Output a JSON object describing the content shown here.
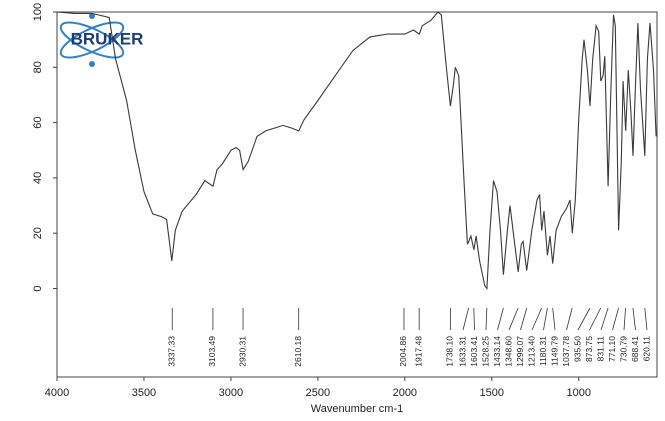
{
  "chart_data": {
    "type": "line",
    "x_label": "Wavenumber cm-1",
    "logo_text": "BRUKER",
    "color": "#3a3a3a",
    "xlim": [
      4000,
      550
    ],
    "ylim": [
      -32,
      100
    ],
    "xticks": [
      4000,
      3500,
      3000,
      2500,
      2000,
      1500,
      1000
    ],
    "yticks": [
      0,
      20,
      40,
      60,
      80,
      100
    ],
    "x": [
      4000,
      3900,
      3800,
      3700,
      3663,
      3600,
      3550,
      3500,
      3450,
      3400,
      3370,
      3340,
      3320,
      3280,
      3200,
      3150,
      3103,
      3080,
      3050,
      3000,
      2970,
      2950,
      2930,
      2900,
      2850,
      2800,
      2750,
      2700,
      2650,
      2610,
      2580,
      2500,
      2400,
      2300,
      2200,
      2100,
      2000,
      1950,
      1917,
      1900,
      1850,
      1810,
      1790,
      1760,
      1738,
      1720,
      1710,
      1690,
      1660,
      1640,
      1633,
      1620,
      1603,
      1590,
      1570,
      1540,
      1528,
      1510,
      1490,
      1470,
      1450,
      1433,
      1410,
      1395,
      1370,
      1348,
      1330,
      1320,
      1299,
      1270,
      1240,
      1225,
      1213,
      1200,
      1180,
      1165,
      1150,
      1130,
      1100,
      1070,
      1050,
      1037,
      1020,
      1000,
      980,
      970,
      950,
      935,
      920,
      900,
      885,
      873,
      860,
      850,
      831,
      815,
      800,
      790,
      771,
      755,
      745,
      730,
      715,
      700,
      688,
      675,
      660,
      645,
      620,
      605,
      590,
      570,
      555
    ],
    "values": [
      100,
      99.5,
      99.5,
      98,
      83,
      68,
      50,
      35,
      27,
      26,
      25,
      10,
      21,
      28,
      34,
      39,
      37,
      43,
      45,
      50,
      51,
      50,
      43,
      46,
      55,
      57,
      58,
      59,
      58,
      57,
      61,
      68,
      77,
      86,
      91,
      92,
      92,
      93.5,
      92,
      95,
      97,
      100,
      99,
      79,
      66,
      74,
      80,
      77,
      39,
      16,
      17,
      19,
      14,
      19,
      10,
      1,
      0,
      21,
      39,
      35,
      21,
      5,
      21,
      30,
      17,
      6,
      16,
      17,
      6.5,
      21,
      32,
      34,
      21,
      28,
      12,
      19,
      9,
      21,
      26,
      29,
      32,
      20,
      32,
      61,
      83,
      90,
      79,
      66,
      83,
      95,
      93,
      75,
      77,
      84,
      37,
      72,
      99,
      95,
      21,
      46,
      75,
      57,
      79,
      64,
      48,
      72,
      96,
      72,
      48,
      83,
      96,
      79,
      55
    ],
    "peaks": [
      3337.33,
      3103.49,
      2930.31,
      2610.18,
      2004.86,
      1917.48,
      {
        "value": 1738.1,
        "label": "1738.10"
      },
      1633.31,
      1603.41,
      1528.25,
      1433.14,
      {
        "value": 1348.6,
        "label": "1348.60"
      },
      1299.07,
      {
        "value": 1213.4,
        "label": "1213.40"
      },
      1180.31,
      1149.79,
      1037.78,
      {
        "value": 935.5,
        "label": "935.50"
      },
      873.75,
      831.11,
      {
        "value": 771.1,
        "label": "771.10"
      },
      730.79,
      688.41,
      620.11
    ]
  }
}
